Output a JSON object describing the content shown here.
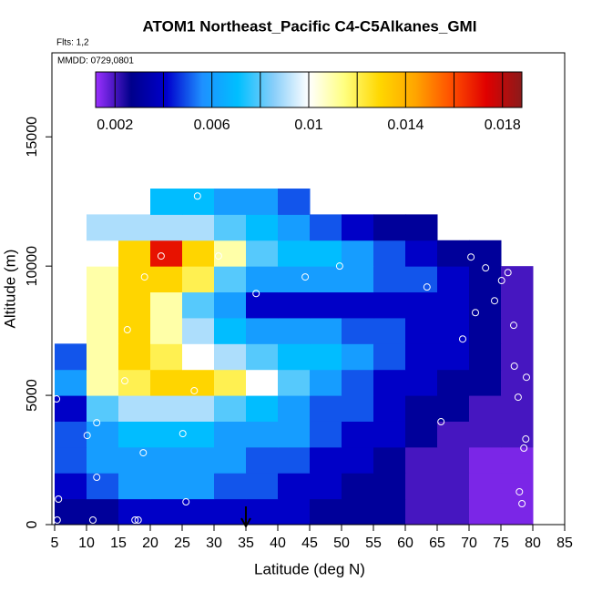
{
  "chart_data": {
    "type": "heatmap",
    "title": "ATOM1 Northeast_Pacific C4-C5Alkanes_GMI",
    "subtitle": "Flts: 1,2",
    "annotation": "MMDD: 0729,0801",
    "x_label": "Latitude (deg N)",
    "y_label": "Altitude (m)",
    "xlim": [
      5,
      85
    ],
    "ylim": [
      0,
      18250
    ],
    "xticks": [
      5,
      10,
      15,
      20,
      25,
      30,
      35,
      40,
      45,
      50,
      55,
      60,
      65,
      70,
      75,
      80,
      85
    ],
    "yticks": [
      0,
      5000,
      10000,
      15000
    ],
    "x_edges": [
      5,
      10,
      15,
      20,
      25,
      30,
      35,
      40,
      45,
      50,
      55,
      60,
      65,
      70,
      75,
      80
    ],
    "y_edges": [
      0,
      1000,
      2000,
      3000,
      4000,
      5000,
      6000,
      7000,
      8000,
      9000,
      10000,
      11000,
      12000,
      13000
    ],
    "z": [
      [
        0.003,
        0.003,
        0.004,
        0.004,
        0.004,
        0.004,
        0.004,
        0.004,
        0.003,
        0.003,
        0.003,
        0.002,
        0.002,
        0.0015,
        0.0015
      ],
      [
        0.004,
        0.005,
        0.006,
        0.006,
        0.006,
        0.005,
        0.005,
        0.004,
        0.004,
        0.003,
        0.003,
        0.002,
        0.002,
        0.0015,
        0.0015
      ],
      [
        0.005,
        0.006,
        0.006,
        0.006,
        0.006,
        0.006,
        0.005,
        0.005,
        0.004,
        0.004,
        0.003,
        0.002,
        0.002,
        0.0015,
        0.0015
      ],
      [
        0.005,
        0.006,
        0.007,
        0.007,
        0.007,
        0.006,
        0.006,
        0.006,
        0.005,
        0.004,
        0.004,
        0.003,
        0.002,
        0.002,
        0.002
      ],
      [
        0.004,
        0.008,
        0.009,
        0.009,
        0.009,
        0.008,
        0.007,
        0.006,
        0.005,
        0.005,
        0.004,
        0.003,
        0.003,
        0.002,
        0.002
      ],
      [
        0.006,
        0.011,
        0.012,
        0.013,
        0.013,
        0.012,
        0.01,
        0.008,
        0.006,
        0.005,
        0.004,
        0.004,
        0.003,
        0.003,
        0.002
      ],
      [
        0.005,
        0.011,
        0.013,
        0.012,
        0.01,
        0.009,
        0.008,
        0.007,
        0.007,
        0.006,
        0.005,
        0.004,
        0.004,
        0.003,
        0.002
      ],
      [
        null,
        0.011,
        0.013,
        0.011,
        0.009,
        0.007,
        0.006,
        0.006,
        0.006,
        0.005,
        0.005,
        0.004,
        0.004,
        0.003,
        0.002
      ],
      [
        null,
        0.011,
        0.013,
        0.011,
        0.008,
        0.006,
        0.004,
        0.004,
        0.004,
        0.004,
        0.004,
        0.004,
        0.004,
        0.003,
        0.002
      ],
      [
        null,
        0.011,
        0.013,
        0.013,
        0.012,
        0.008,
        0.006,
        0.006,
        0.006,
        0.006,
        0.005,
        0.005,
        0.004,
        0.003,
        0.002
      ],
      [
        null,
        0.01,
        0.013,
        0.017,
        0.013,
        0.011,
        0.008,
        0.007,
        0.007,
        0.006,
        0.005,
        0.004,
        0.003,
        0.003,
        null
      ],
      [
        null,
        0.009,
        0.009,
        0.009,
        0.009,
        0.008,
        0.007,
        0.006,
        0.005,
        0.004,
        0.003,
        0.003,
        null,
        null,
        null
      ],
      [
        null,
        null,
        null,
        0.007,
        0.007,
        0.006,
        0.006,
        0.005,
        null,
        null,
        null,
        null,
        null,
        null,
        null
      ]
    ],
    "clim": [
      0.0012,
      0.0188
    ],
    "colorscale": [
      "#9b30ff",
      "#00008b",
      "#0000cd",
      "#1e90ff",
      "#00bfff",
      "#87cefa",
      "#ffffff",
      "#ffff80",
      "#ffd700",
      "#ffa500",
      "#ff5000",
      "#e00000",
      "#8b1a1a"
    ],
    "colorbar_ticks": [
      0.002,
      0.006,
      0.01,
      0.014,
      0.018
    ],
    "colorbar_dividers": [
      0.004,
      0.008,
      0.012,
      0.016
    ],
    "points": {
      "x": [
        5.4,
        5.6,
        5.3,
        11,
        10.1,
        11.6,
        11.6,
        14.3,
        17.6,
        18.1,
        18.9,
        16.4,
        16,
        19.1,
        21.7,
        25.1,
        25.6,
        26.9,
        27.4,
        30.7,
        36.6,
        44.3,
        49.7,
        63.4,
        65.6,
        67.6,
        69,
        70.3,
        71,
        72.6,
        74,
        75.1,
        76.1,
        77,
        77.1,
        77.7,
        79,
        78.9,
        78.6,
        77.9,
        78.3
      ],
      "y": [
        176,
        986,
        4860,
        176,
        3450,
        3940,
        1830,
        10740,
        176,
        176,
        2780,
        7540,
        5560,
        9580,
        10390,
        3520,
        880,
        5180,
        12710,
        10390,
        8940,
        9580,
        10000,
        9190,
        3980,
        11370,
        7180,
        10350,
        8200,
        9930,
        8660,
        9440,
        9750,
        7710,
        6130,
        4930,
        5700,
        3310,
        2960,
        1270,
        810
      ],
      "color": "#ffffff"
    },
    "marker_x": 35
  }
}
